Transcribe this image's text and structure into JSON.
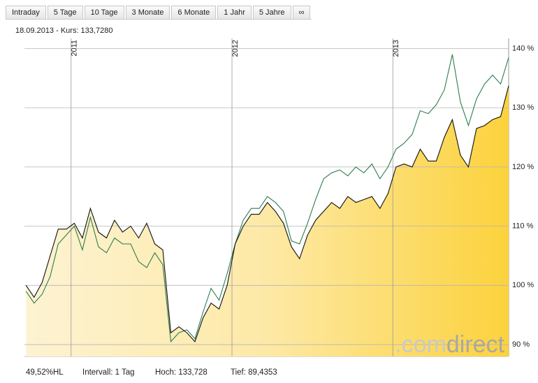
{
  "tabs": [
    "Intraday",
    "5 Tage",
    "10 Tage",
    "3 Monate",
    "6 Monate",
    "1 Jahr",
    "5 Jahre",
    "∞"
  ],
  "header": "18.09.2013  -  Kurs: 133,7280",
  "chart_data": {
    "type": "line",
    "x": [
      2010.72,
      2010.77,
      2010.82,
      2010.87,
      2010.92,
      2010.97,
      2011.02,
      2011.07,
      2011.12,
      2011.17,
      2011.22,
      2011.27,
      2011.32,
      2011.37,
      2011.42,
      2011.47,
      2011.52,
      2011.57,
      2011.62,
      2011.67,
      2011.72,
      2011.77,
      2011.82,
      2011.87,
      2011.92,
      2011.97,
      2012.02,
      2012.07,
      2012.12,
      2012.17,
      2012.22,
      2012.27,
      2012.32,
      2012.37,
      2012.42,
      2012.47,
      2012.52,
      2012.57,
      2012.62,
      2012.67,
      2012.72,
      2012.77,
      2012.82,
      2012.87,
      2012.92,
      2012.97,
      2013.02,
      2013.07,
      2013.12,
      2013.17,
      2013.22,
      2013.27,
      2013.32,
      2013.37,
      2013.42,
      2013.47,
      2013.52,
      2013.57,
      2013.62,
      2013.67,
      2013.72
    ],
    "series": [
      {
        "color": "#111111",
        "fill": true,
        "values": [
          100,
          98,
          100.5,
          105,
          109.5,
          109.5,
          110.5,
          108,
          113,
          109,
          108,
          111,
          109,
          110,
          108,
          110.5,
          107,
          106,
          92,
          93,
          92,
          90.5,
          94.5,
          97,
          96,
          100,
          107,
          110,
          112,
          112,
          114,
          112.5,
          110.5,
          106.5,
          104.5,
          108.5,
          111,
          112.5,
          114,
          113,
          115,
          114,
          114.5,
          115,
          113,
          115.5,
          120,
          120.5,
          120,
          123,
          121,
          121,
          125,
          128,
          122,
          120,
          126.5,
          127,
          128,
          128.5,
          133.7
        ]
      },
      {
        "color": "#2e7d4f",
        "fill": false,
        "values": [
          99,
          97,
          98.5,
          101.5,
          107,
          108.5,
          110,
          106,
          111.5,
          106.5,
          105.5,
          108,
          107,
          107,
          104,
          103,
          105.5,
          103.5,
          90.5,
          92,
          92.5,
          91,
          95.5,
          99.5,
          97.5,
          102,
          107,
          111,
          113,
          113,
          115,
          114,
          112.5,
          107.5,
          107,
          110.5,
          114.5,
          118,
          119,
          119.5,
          118.5,
          120,
          119,
          120.5,
          118,
          120,
          123,
          124,
          125.5,
          129.5,
          129,
          130.5,
          133,
          139,
          131,
          127,
          131.5,
          134,
          135.5,
          134,
          138.5
        ]
      }
    ],
    "xlim": [
      2010.71,
      2013.72
    ],
    "xticks": [
      2011,
      2012,
      2013
    ],
    "ylim": [
      88,
      141.7
    ],
    "yticks": [
      {
        "value": 90,
        "label": "90 %"
      },
      {
        "value": 100,
        "label": "100 %"
      },
      {
        "value": 110,
        "label": "110 %"
      },
      {
        "value": 120,
        "label": "120 %"
      },
      {
        "value": 130,
        "label": "130 %"
      },
      {
        "value": 140,
        "label": "140 %"
      }
    ],
    "grid": true
  },
  "footer": [
    "49,52%HL",
    "Intervall: 1 Tag",
    "Hoch: 133,728",
    "Tief: 89,4353"
  ],
  "watermark": [
    ".com",
    "direct"
  ]
}
